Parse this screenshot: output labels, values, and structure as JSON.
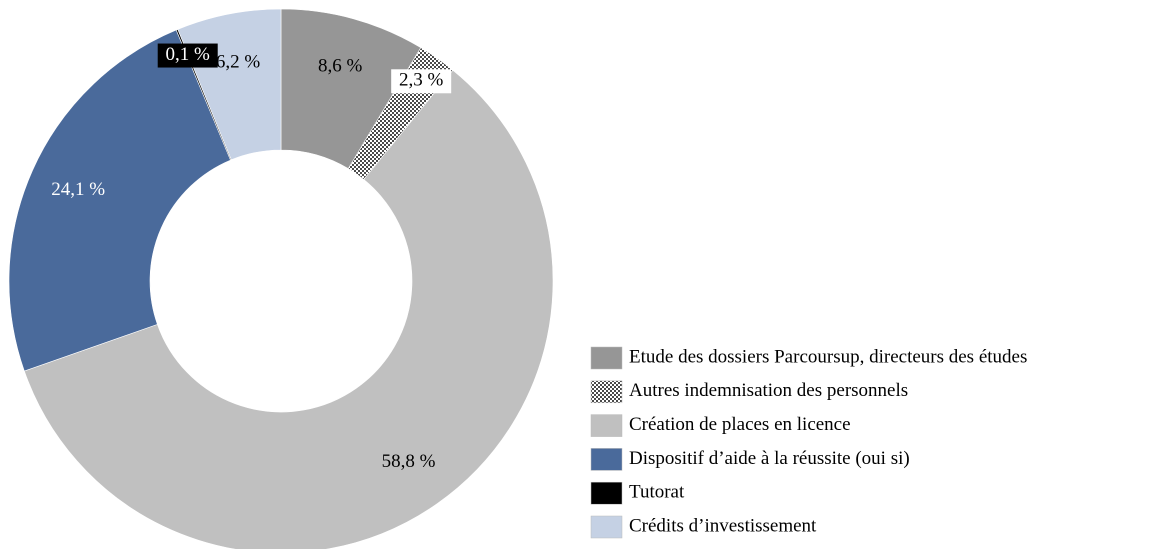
{
  "chart_data": {
    "type": "donut",
    "categories": [
      "Etude des dossiers Parcoursup, directeurs des études",
      "Autres indemnisation des personnels",
      "Création de places en licence",
      "Dispositif d’aide à la réussite (oui si)",
      "Tutorat",
      "Crédits d’investissement"
    ],
    "values": [
      8.6,
      2.3,
      58.8,
      24.1,
      0.1,
      6.2
    ],
    "value_labels": [
      "8,6 %",
      "2,3 %",
      "58,8 %",
      "24,1 %",
      "0,1 %",
      "6,2 %"
    ],
    "colors": [
      "#969696",
      "#5a5a5a",
      "#c0c0c0",
      "#4a6a9b",
      "#000000",
      "#c5d1e4"
    ],
    "hatched": [
      false,
      true,
      false,
      false,
      false,
      false
    ],
    "legend": "bottom-right"
  }
}
